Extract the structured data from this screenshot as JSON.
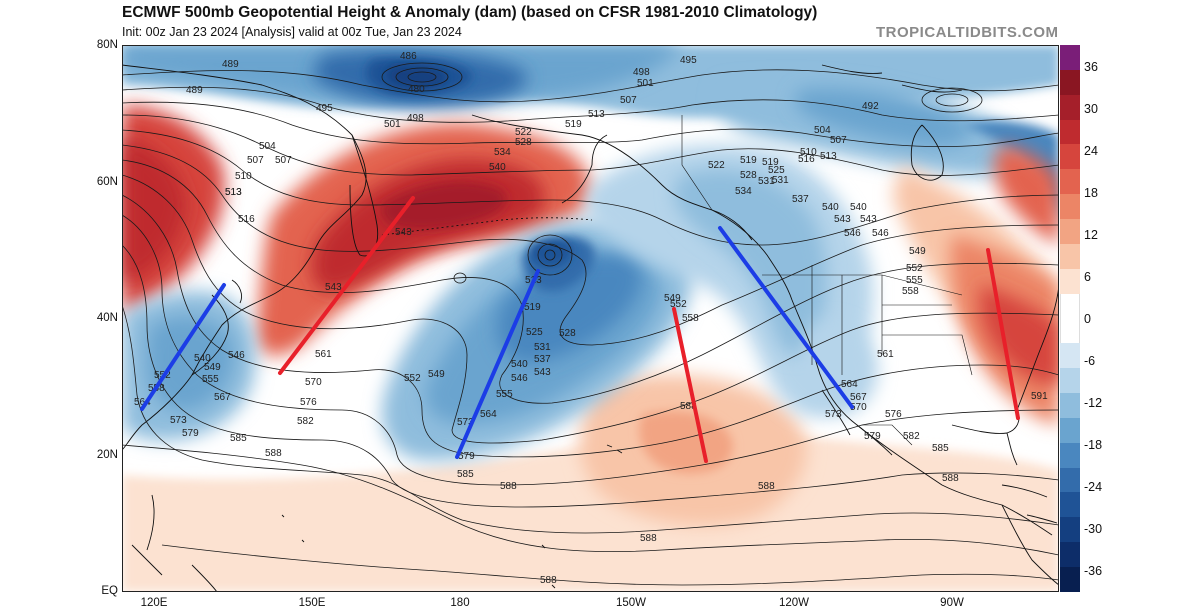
{
  "header": {
    "title": "ECMWF 500mb Geopotential Height & Anomaly (dam) (based on CFSR 1981-2010 Climatology)",
    "subtitle": "Init: 00z Jan 23 2024   [Analysis]   valid at 00z Tue, Jan 23 2024",
    "watermark": "TROPICALTIDBITS.COM"
  },
  "axes": {
    "lat_labels": [
      "80N",
      "60N",
      "40N",
      "20N",
      "EQ"
    ],
    "lon_labels": [
      "120E",
      "150E",
      "180",
      "150W",
      "120W",
      "90W"
    ]
  },
  "colorbar": {
    "labels": [
      "36",
      "30",
      "24",
      "18",
      "12",
      "6",
      "0",
      "-6",
      "-12",
      "-18",
      "-24",
      "-30",
      "-36"
    ],
    "colors": [
      "#7a1e78",
      "#8a1622",
      "#a51f2a",
      "#bf2b2f",
      "#d6453d",
      "#e3634f",
      "#ec8566",
      "#f2a483",
      "#f8c5a8",
      "#fce2d1",
      "#ffffff",
      "#ffffff",
      "#d5e6f3",
      "#b5d4ea",
      "#8fbddd",
      "#6aa4cf",
      "#4a87bf",
      "#336cab",
      "#1f5396",
      "#143f80",
      "#0d2d69",
      "#081f50"
    ],
    "colors_note_removed": true
  },
  "contour_labels": [
    {
      "t": "489"
    },
    {
      "t": "486"
    },
    {
      "t": "480"
    },
    {
      "t": "489"
    },
    {
      "t": "495"
    },
    {
      "t": "498"
    },
    {
      "t": "501"
    },
    {
      "t": "507"
    },
    {
      "t": "513"
    },
    {
      "t": "519"
    },
    {
      "t": "522"
    },
    {
      "t": "528"
    },
    {
      "t": "534"
    },
    {
      "t": "540"
    },
    {
      "t": "543"
    },
    {
      "t": "504"
    },
    {
      "t": "507"
    },
    {
      "t": "510"
    },
    {
      "t": "513"
    },
    {
      "t": "516"
    },
    {
      "t": "543"
    },
    {
      "t": "561"
    },
    {
      "t": "570"
    },
    {
      "t": "576"
    },
    {
      "t": "582"
    },
    {
      "t": "585"
    },
    {
      "t": "588"
    },
    {
      "t": "579"
    },
    {
      "t": "573"
    },
    {
      "t": "567"
    },
    {
      "t": "564"
    },
    {
      "t": "558"
    },
    {
      "t": "555"
    },
    {
      "t": "552"
    },
    {
      "t": "549"
    },
    {
      "t": "546"
    },
    {
      "t": "540"
    },
    {
      "t": "513"
    },
    {
      "t": "519"
    },
    {
      "t": "525"
    },
    {
      "t": "528"
    },
    {
      "t": "531"
    },
    {
      "t": "537"
    },
    {
      "t": "540"
    },
    {
      "t": "543"
    },
    {
      "t": "546"
    },
    {
      "t": "549"
    },
    {
      "t": "552"
    },
    {
      "t": "555"
    },
    {
      "t": "564"
    },
    {
      "t": "573"
    },
    {
      "t": "579"
    },
    {
      "t": "585"
    },
    {
      "t": "588"
    },
    {
      "t": "552"
    },
    {
      "t": "558"
    },
    {
      "t": "549"
    },
    {
      "t": "588"
    },
    {
      "t": "588"
    },
    {
      "t": "588"
    },
    {
      "t": "588"
    },
    {
      "t": "495"
    },
    {
      "t": "498"
    },
    {
      "t": "501"
    },
    {
      "t": "507"
    },
    {
      "t": "513"
    },
    {
      "t": "519"
    },
    {
      "t": "522"
    },
    {
      "t": "528"
    },
    {
      "t": "531"
    },
    {
      "t": "534"
    },
    {
      "t": "537"
    },
    {
      "t": "540"
    },
    {
      "t": "543"
    },
    {
      "t": "546"
    },
    {
      "t": "549"
    },
    {
      "t": "552"
    },
    {
      "t": "555"
    },
    {
      "t": "558"
    },
    {
      "t": "561"
    },
    {
      "t": "564"
    },
    {
      "t": "567"
    },
    {
      "t": "570"
    },
    {
      "t": "573"
    },
    {
      "t": "576"
    },
    {
      "t": "579"
    },
    {
      "t": "582"
    },
    {
      "t": "585"
    },
    {
      "t": "588"
    },
    {
      "t": "591"
    },
    {
      "t": "492"
    },
    {
      "t": "504"
    },
    {
      "t": "507"
    },
    {
      "t": "510"
    },
    {
      "t": "513"
    },
    {
      "t": "516"
    },
    {
      "t": "519"
    },
    {
      "t": "525"
    },
    {
      "t": "531"
    },
    {
      "t": "540"
    },
    {
      "t": "543"
    },
    {
      "t": "546"
    }
  ],
  "trough_axes_color": "#1c3de6",
  "ridge_axes_color": "#e8202a"
}
